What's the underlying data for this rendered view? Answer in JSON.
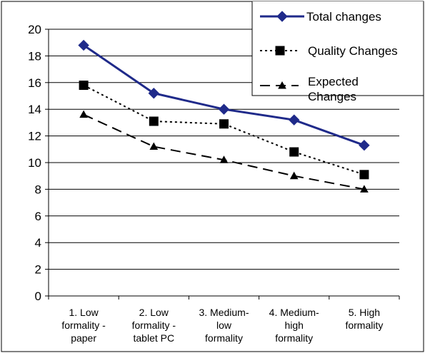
{
  "chart_data": {
    "type": "line",
    "categories": [
      [
        "1.  Low",
        "formality -",
        "paper"
      ],
      [
        "2.  Low",
        "formality -",
        "tablet PC"
      ],
      [
        "3.  Medium-",
        "low",
        "formality"
      ],
      [
        "4.  Medium-",
        "high",
        "formality"
      ],
      [
        "5.  High",
        "formality"
      ]
    ],
    "series": [
      {
        "name": "Total changes",
        "values": [
          18.8,
          15.2,
          14.0,
          13.2,
          11.3
        ],
        "color": "#1f2a8a",
        "style": "solid",
        "marker": "diamond"
      },
      {
        "name": "Quality Changes",
        "values": [
          15.8,
          13.1,
          12.9,
          10.8,
          9.1
        ],
        "color": "#000000",
        "style": "dotted",
        "marker": "square"
      },
      {
        "name": "Expected Changes",
        "values": [
          13.6,
          11.2,
          10.2,
          9.0,
          8.0
        ],
        "color": "#000000",
        "style": "dashed",
        "marker": "triangle"
      }
    ],
    "legend_display": [
      "Total changes",
      "Quality Changes",
      "Expected",
      "Changes"
    ],
    "ylim": [
      0,
      20
    ],
    "yticks": [
      0,
      2,
      4,
      6,
      8,
      10,
      12,
      14,
      16,
      18,
      20
    ],
    "grid": true,
    "legend_position": "top-right",
    "title": "",
    "xlabel": "",
    "ylabel": ""
  }
}
